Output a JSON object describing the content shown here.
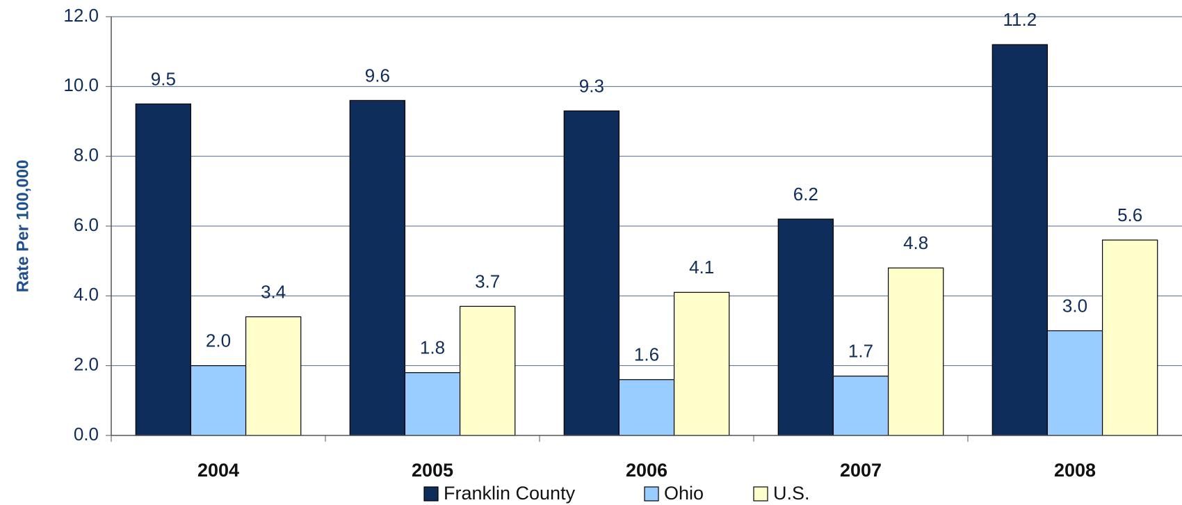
{
  "chart_data": {
    "type": "bar",
    "y_label": "Rate Per 100,000",
    "categories": [
      "2004",
      "2005",
      "2006",
      "2007",
      "2008"
    ],
    "series": [
      {
        "name": "Franklin County",
        "color": "#0f2d5b",
        "values": [
          9.5,
          9.6,
          9.3,
          6.2,
          11.2
        ],
        "value_labels": [
          "9.5",
          "9.6",
          "9.3",
          "6.2",
          "11.2"
        ]
      },
      {
        "name": "Ohio",
        "color": "#99ccff",
        "values": [
          2.0,
          1.8,
          1.6,
          1.7,
          3.0
        ],
        "value_labels": [
          "2.0",
          "1.8",
          "1.6",
          "1.7",
          "3.0"
        ]
      },
      {
        "name": "U.S.",
        "color": "#ffffcc",
        "values": [
          3.4,
          3.7,
          4.1,
          4.8,
          5.6
        ],
        "value_labels": [
          "3.4",
          "3.7",
          "4.1",
          "4.8",
          "5.6"
        ]
      }
    ],
    "ylim": [
      0,
      12
    ],
    "yticks": [
      {
        "value": 0,
        "label": "0.0"
      },
      {
        "value": 2,
        "label": "2.0"
      },
      {
        "value": 4,
        "label": "4.0"
      },
      {
        "value": 6,
        "label": "6.0"
      },
      {
        "value": 8,
        "label": "8.0"
      },
      {
        "value": 10,
        "label": "10.0"
      },
      {
        "value": 12,
        "label": "12.0"
      }
    ],
    "grid": true,
    "legend": "bottom"
  }
}
